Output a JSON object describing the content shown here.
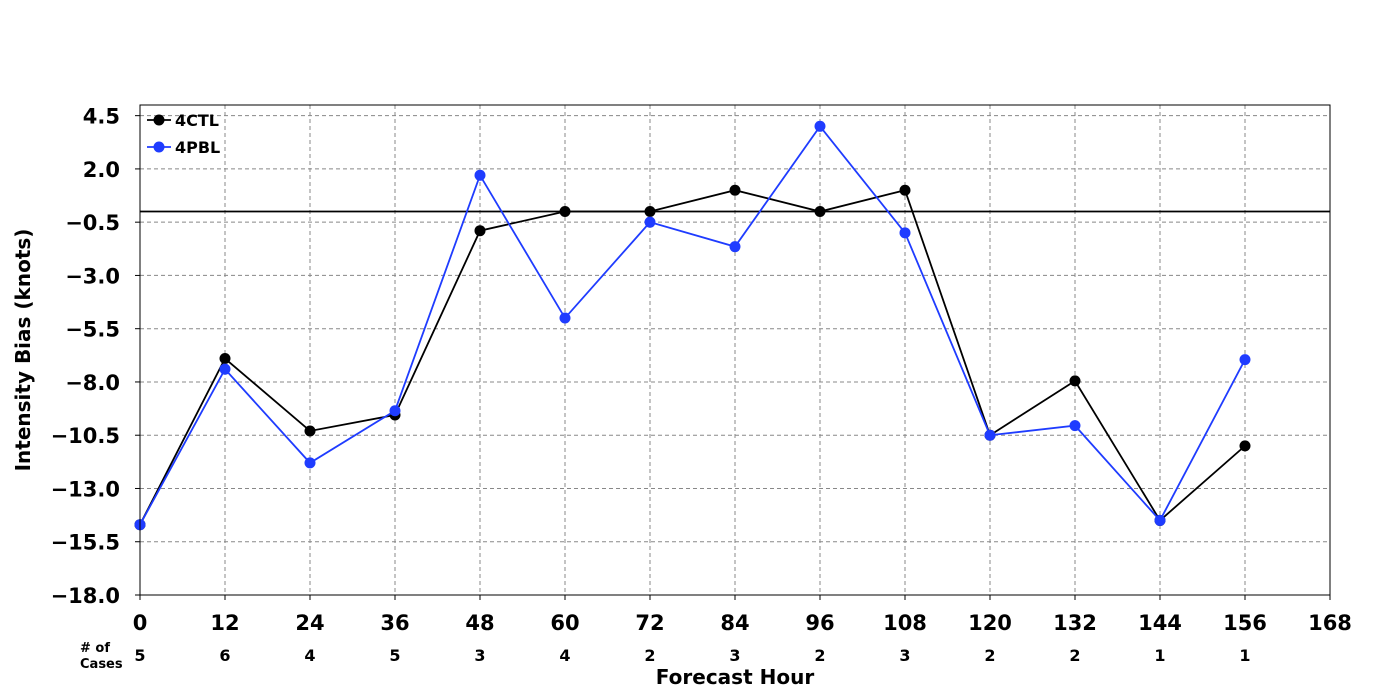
{
  "chart_data": {
    "type": "line",
    "title": "",
    "xlabel": "Forecast Hour",
    "ylabel": "Intensity Bias (knots)",
    "xlim": [
      0,
      168
    ],
    "ylim": [
      -18.0,
      5.0
    ],
    "x_ticks": [
      0,
      12,
      24,
      36,
      48,
      60,
      72,
      84,
      96,
      108,
      120,
      132,
      144,
      156,
      168
    ],
    "y_ticks": [
      4.5,
      2.0,
      -0.5,
      -3.0,
      -5.5,
      -8.0,
      -10.5,
      -13.0,
      -15.5,
      -18.0
    ],
    "y_tick_labels": [
      "4.5",
      "2.0",
      "−0.5",
      "−3.0",
      "−5.5",
      "−8.0",
      "−10.5",
      "−13.0",
      "−15.5",
      "−18.0"
    ],
    "grid": true,
    "zero_line": 0,
    "legend_placement": "top-left",
    "x": [
      0,
      12,
      24,
      36,
      48,
      60,
      72,
      84,
      96,
      108,
      120,
      132,
      144,
      156
    ],
    "series": [
      {
        "name": "4CTL",
        "color": "#000000",
        "values": [
          -14.7,
          -6.9,
          -10.3,
          -9.55,
          -0.9,
          0.0,
          0.0,
          1.0,
          0.0,
          1.0,
          -10.5,
          -7.95,
          -14.5,
          -11.0
        ]
      },
      {
        "name": "4PBL",
        "color": "#1f3cff",
        "values": [
          -14.7,
          -7.4,
          -11.8,
          -9.35,
          1.7,
          -5.0,
          -0.5,
          -1.65,
          4.0,
          -1.0,
          -10.5,
          -10.05,
          -14.5,
          -6.95
        ]
      }
    ],
    "cases": {
      "title_line1": "# of",
      "title_line2": "Cases",
      "counts": [
        "5",
        "6",
        "4",
        "5",
        "3",
        "4",
        "2",
        "3",
        "2",
        "3",
        "2",
        "2",
        "1",
        "1"
      ]
    }
  }
}
